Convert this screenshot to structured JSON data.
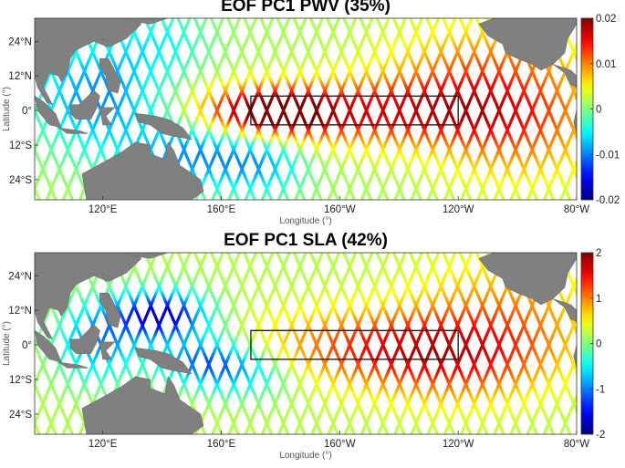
{
  "panels": [
    {
      "id": "pwv",
      "title": "EOF PC1 PWV (35%)",
      "colorbar_ticks": [
        "0.02",
        "0.01",
        "0",
        "-0.01",
        "-0.02"
      ],
      "colorbar_values": [
        0.02,
        0.01,
        0,
        -0.01,
        -0.02
      ],
      "clim": [
        -0.02,
        0.02
      ]
    },
    {
      "id": "sla",
      "title": "EOF PC1 SLA (42%)",
      "colorbar_ticks": [
        "2",
        "1",
        "0",
        "-1",
        "-2"
      ],
      "colorbar_values": [
        2,
        1,
        0,
        -1,
        -2
      ],
      "clim": [
        -2,
        2
      ]
    }
  ],
  "axes": {
    "xlabel": "Longitude (°)",
    "ylabel": "Latitude (°)",
    "x_ticks": [
      "120°E",
      "160°E",
      "160°W",
      "120°W",
      "80°W"
    ],
    "x_tick_values": [
      120,
      160,
      200,
      240,
      280
    ],
    "y_ticks": [
      "24°N",
      "12°N",
      "0°",
      "12°S",
      "24°S"
    ],
    "y_tick_values": [
      24,
      12,
      0,
      -12,
      -24
    ],
    "lon_range": [
      97,
      280
    ],
    "lat_range": [
      -31,
      32
    ]
  },
  "box_region": {
    "lon": [
      170,
      240
    ],
    "lat": [
      -5,
      5
    ]
  },
  "colors": {
    "land": "#808080",
    "box": "#000000"
  }
}
